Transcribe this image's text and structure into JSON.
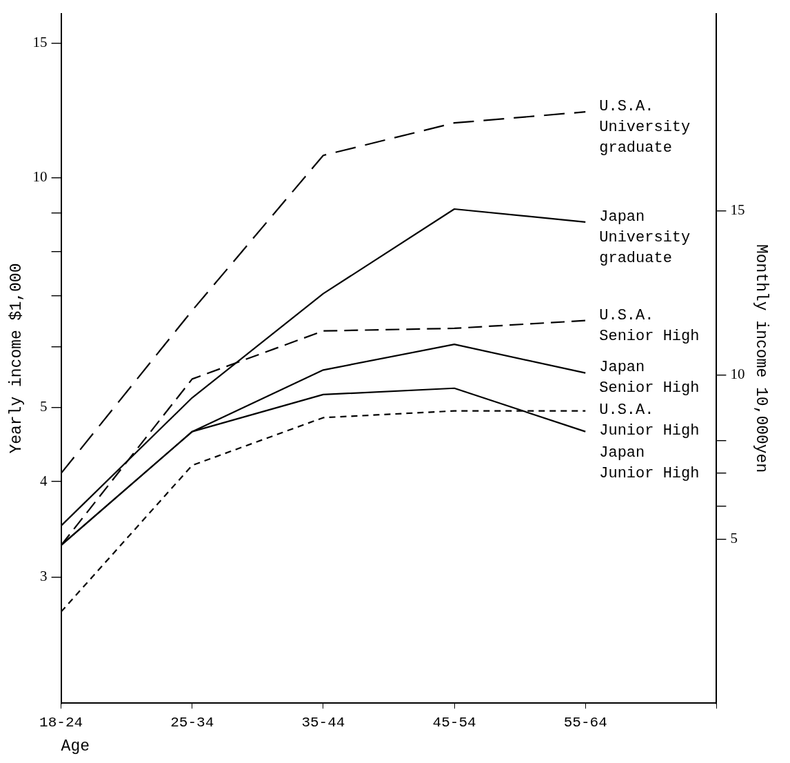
{
  "chart_data": {
    "type": "line",
    "xlabel": "Age",
    "ylabel": "Yearly income $1,000",
    "y2label": "Monthly income 10,000yen",
    "categories": [
      "18-24",
      "25-34",
      "35-44",
      "45-54",
      "55-64"
    ],
    "series": [
      {
        "name": "U.S.A. University graduate",
        "color": "#000000",
        "line_style": "dashed",
        "values": [
          4.1,
          6.7,
          10.7,
          11.8,
          12.2
        ]
      },
      {
        "name": "Japan University graduate",
        "color": "#000000",
        "line_style": "solid",
        "values": [
          3.5,
          5.15,
          7.05,
          9.1,
          8.75
        ]
      },
      {
        "name": "U.S.A. Senior High",
        "color": "#000000",
        "line_style": "dashed",
        "values": [
          3.3,
          5.45,
          6.3,
          6.35,
          6.5
        ]
      },
      {
        "name": "Japan Senior High",
        "color": "#000000",
        "line_style": "solid",
        "values": [
          3.3,
          4.65,
          5.6,
          6.05,
          5.55
        ]
      },
      {
        "name": "U.S.A. Junior High",
        "color": "#000000",
        "line_style": "dashed",
        "values": [
          2.7,
          4.2,
          4.85,
          4.95,
          4.95
        ]
      },
      {
        "name": "Japan Junior High",
        "color": "#000000",
        "line_style": "solid",
        "values": [
          3.3,
          4.65,
          5.2,
          5.3,
          4.65
        ]
      }
    ],
    "log": "y",
    "ylim": [
      2.05,
      16.4
    ],
    "yticks": [
      3,
      4,
      5,
      {
        "value": 6,
        "label": null
      },
      {
        "value": 7,
        "label": null
      },
      {
        "value": 8,
        "label": null
      },
      {
        "value": 9,
        "label": null
      },
      10,
      15
    ],
    "y2lim": [
      0,
      21
    ],
    "y2ticks": [
      5,
      {
        "value": 6,
        "label": null
      },
      {
        "value": 7,
        "label": null
      },
      {
        "value": 8,
        "label": null
      },
      10,
      15
    ],
    "grid": false,
    "legend": false,
    "marker": "none"
  }
}
